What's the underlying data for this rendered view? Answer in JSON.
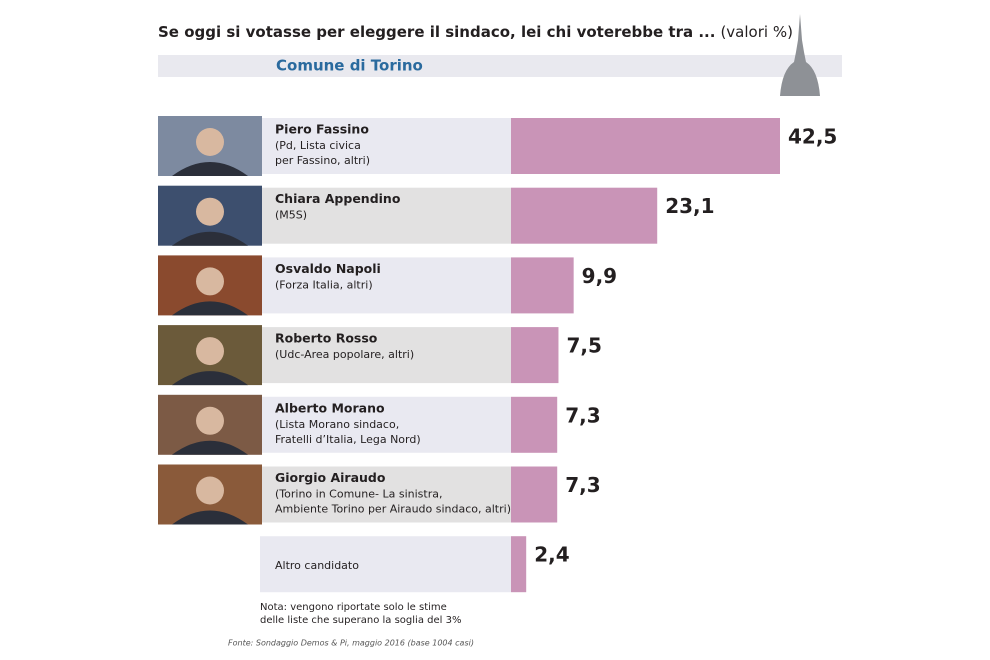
{
  "chart_data": {
    "type": "bar",
    "title": "Se oggi si votasse per eleggere il sindaco, lei chi voterebbe tra ...",
    "title_unit": "(valori %)",
    "subtitle": "Comune di Torino",
    "categories": [
      "Piero Fassino",
      "Chiara Appendino",
      "Osvaldo Napoli",
      "Roberto Rosso",
      "Alberto Morano",
      "Giorgio Airaudo",
      "Altro candidato"
    ],
    "descriptions": [
      [
        "(Pd, Lista civica",
        "per Fassino, altri)"
      ],
      [
        "(M5S)"
      ],
      [
        "(Forza Italia, altri)"
      ],
      [
        "(Udc-Area popolare, altri)"
      ],
      [
        "(Lista Morano sindaco,",
        "Fratelli d’Italia, Lega Nord)"
      ],
      [
        "(Torino in Comune- La sinistra,",
        "Ambiente Torino per Airaudo sindaco, altri)"
      ],
      []
    ],
    "values": [
      42.5,
      23.1,
      9.9,
      7.5,
      7.3,
      7.3,
      2.4
    ],
    "value_labels": [
      "42,5",
      "23,1",
      "9,9",
      "7,5",
      "7,3",
      "7,3",
      "2,4"
    ],
    "color": "#c994b7",
    "note": [
      "Nota: vengono riportate solo le stime",
      "delle liste che superano la soglia del 3%"
    ],
    "source": "Fonte: Sondaggio Demos & Pi, maggio 2016 (base 1004 casi)"
  }
}
